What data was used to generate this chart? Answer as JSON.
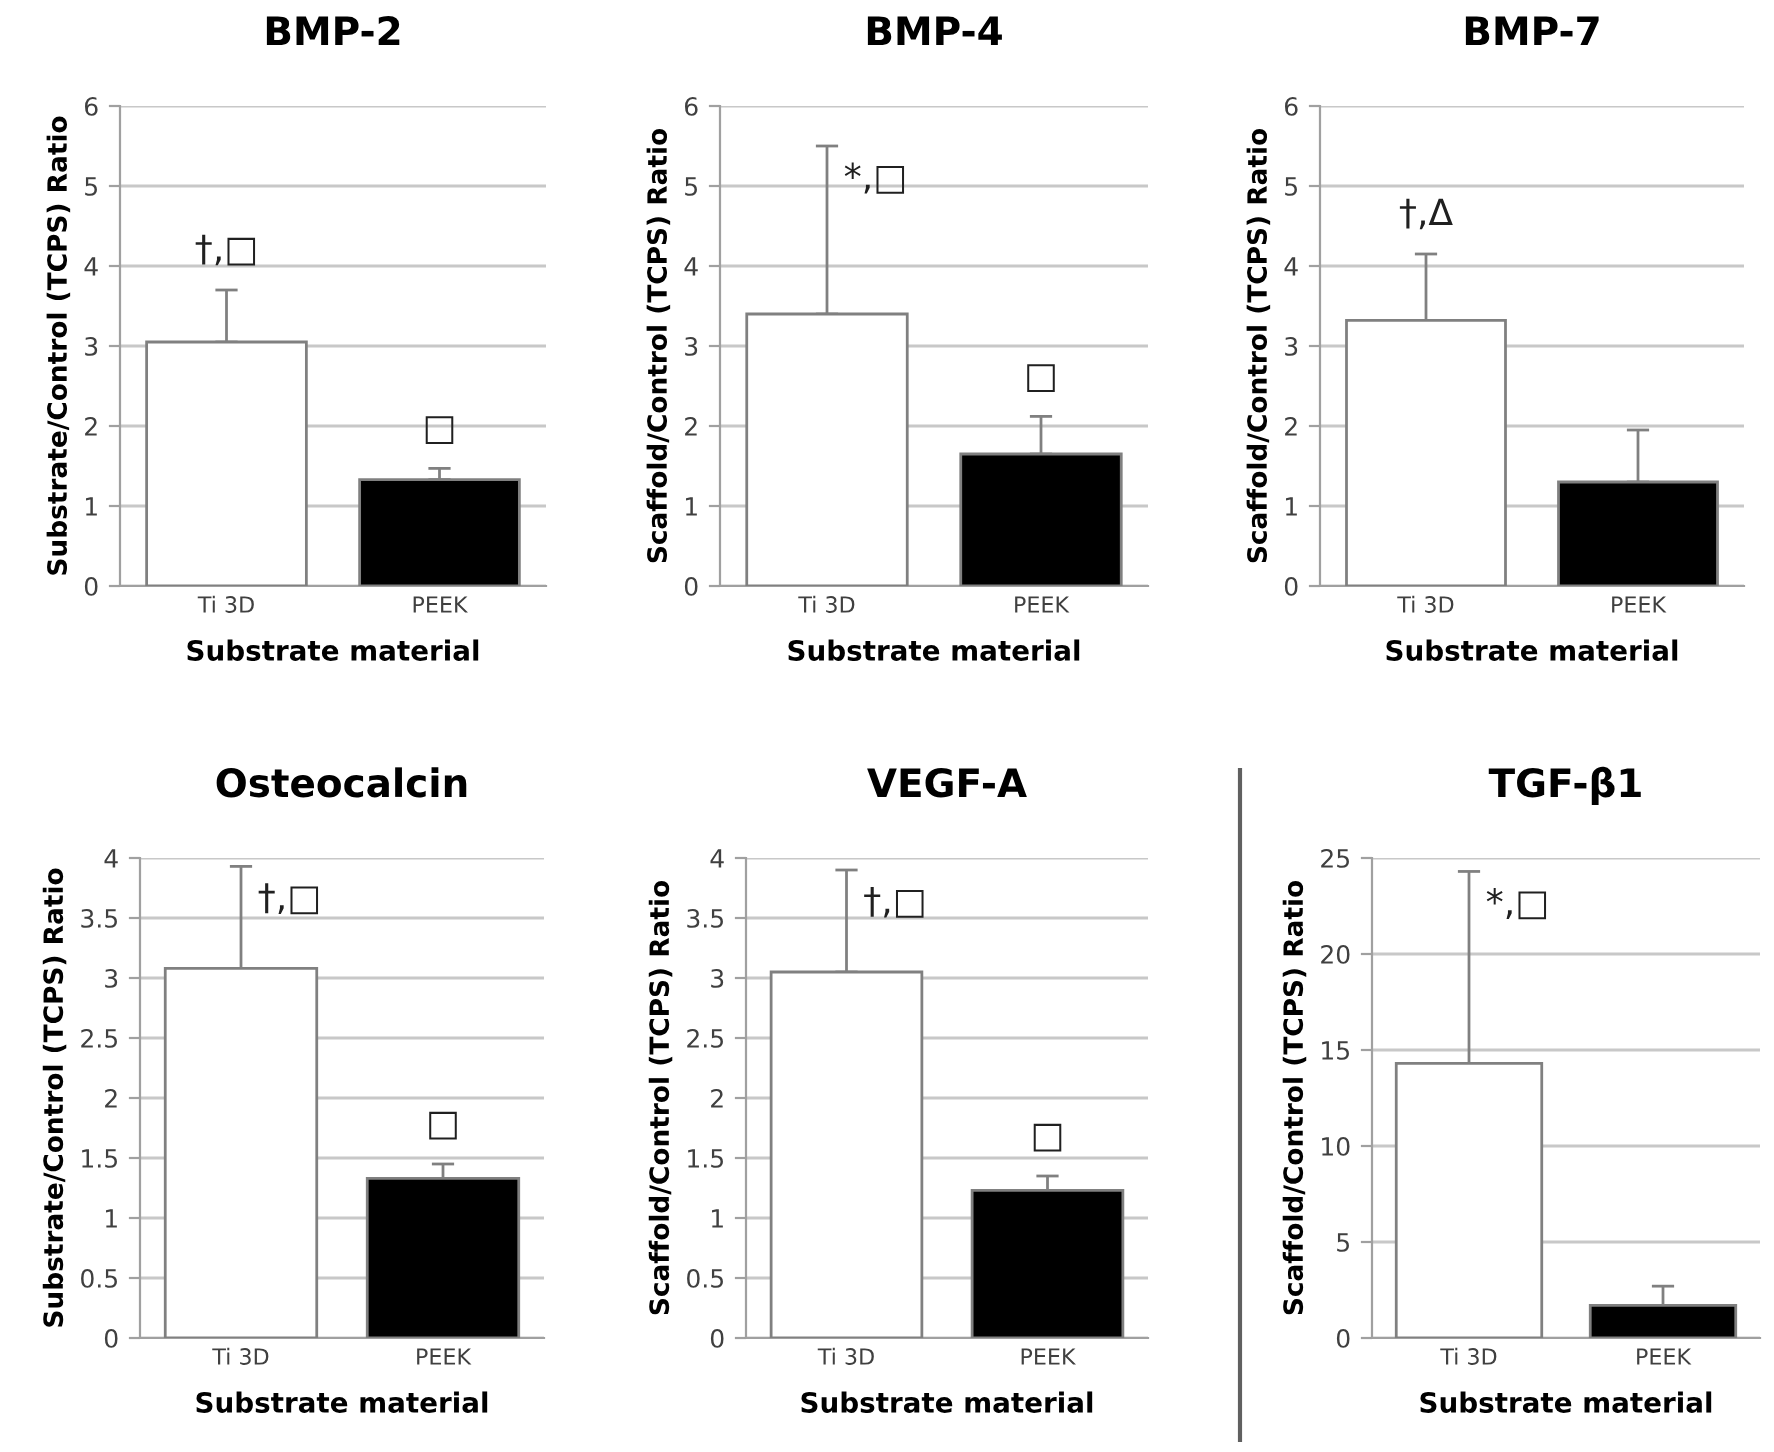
{
  "chart_data": [
    {
      "type": "bar",
      "title": "BMP-2",
      "xlabel": "Substrate material",
      "ylabel": "Substrate/Control (TCPS) Ratio",
      "categories": [
        "Ti 3D",
        "PEEK"
      ],
      "values": [
        3.05,
        1.33
      ],
      "colors": [
        "#ffffff",
        "#000000"
      ],
      "errors": [
        [
          3.05,
          3.7
        ],
        [
          1.33,
          1.47
        ]
      ],
      "ylim": [
        0,
        6
      ],
      "yticks": [
        0,
        1,
        2,
        3,
        4,
        5,
        6
      ],
      "grid": "y",
      "annotations": [
        "†,□",
        "□"
      ]
    },
    {
      "type": "bar",
      "title": "BMP-4",
      "xlabel": "Substrate material",
      "ylabel": "Scaffold/Control (TCPS) Ratio",
      "categories": [
        "Ti 3D",
        "PEEK"
      ],
      "values": [
        3.4,
        1.65
      ],
      "colors": [
        "#ffffff",
        "#000000"
      ],
      "errors": [
        [
          3.4,
          5.5
        ],
        [
          1.65,
          2.12
        ]
      ],
      "ylim": [
        0,
        6
      ],
      "yticks": [
        0,
        1,
        2,
        3,
        4,
        5,
        6
      ],
      "grid": "y",
      "annotations": [
        "*,□",
        "□"
      ]
    },
    {
      "type": "bar",
      "title": "BMP-7",
      "xlabel": "Substrate material",
      "ylabel": "Scaffold/Control (TCPS) Ratio",
      "categories": [
        "Ti 3D",
        "PEEK"
      ],
      "values": [
        3.32,
        1.3
      ],
      "colors": [
        "#ffffff",
        "#000000"
      ],
      "errors": [
        [
          3.32,
          4.15
        ],
        [
          1.3,
          1.95
        ]
      ],
      "ylim": [
        0,
        6
      ],
      "yticks": [
        0,
        1,
        2,
        3,
        4,
        5,
        6
      ],
      "grid": "y",
      "annotations": [
        "†,Δ"
      ]
    },
    {
      "type": "bar",
      "title": "Osteocalcin",
      "xlabel": "Substrate material",
      "ylabel": "Substrate/Control (TCPS) Ratio",
      "categories": [
        "Ti 3D",
        "PEEK"
      ],
      "values": [
        3.08,
        1.33
      ],
      "colors": [
        "#ffffff",
        "#000000"
      ],
      "errors": [
        [
          3.08,
          3.93
        ],
        [
          1.33,
          1.45
        ]
      ],
      "ylim": [
        0,
        4
      ],
      "yticks": [
        0,
        0.5,
        1,
        1.5,
        2,
        2.5,
        3,
        3.5,
        4
      ],
      "grid": "y",
      "annotations": [
        "†,□",
        "□"
      ]
    },
    {
      "type": "bar",
      "title": "VEGF-A",
      "xlabel": "Substrate material",
      "ylabel": "Scaffold/Control (TCPS) Ratio",
      "categories": [
        "Ti 3D",
        "PEEK"
      ],
      "values": [
        3.05,
        1.23
      ],
      "colors": [
        "#ffffff",
        "#000000"
      ],
      "errors": [
        [
          3.05,
          3.9
        ],
        [
          1.23,
          1.35
        ]
      ],
      "ylim": [
        0,
        4
      ],
      "yticks": [
        0,
        0.5,
        1,
        1.5,
        2,
        2.5,
        3,
        3.5,
        4
      ],
      "grid": "y",
      "annotations": [
        "†,□",
        "□"
      ]
    },
    {
      "type": "bar",
      "title": "TGF-β1",
      "xlabel": "Substrate material",
      "ylabel": "Scaffold/Control (TCPS) Ratio",
      "categories": [
        "Ti 3D",
        "PEEK"
      ],
      "values": [
        14.3,
        1.7
      ],
      "colors": [
        "#ffffff",
        "#000000"
      ],
      "errors": [
        [
          14.3,
          24.3
        ],
        [
          1.7,
          2.7
        ]
      ],
      "ylim": [
        0,
        25
      ],
      "yticks": [
        0,
        5,
        10,
        15,
        20,
        25
      ],
      "grid": "y",
      "annotations": [
        "*,□"
      ]
    }
  ]
}
